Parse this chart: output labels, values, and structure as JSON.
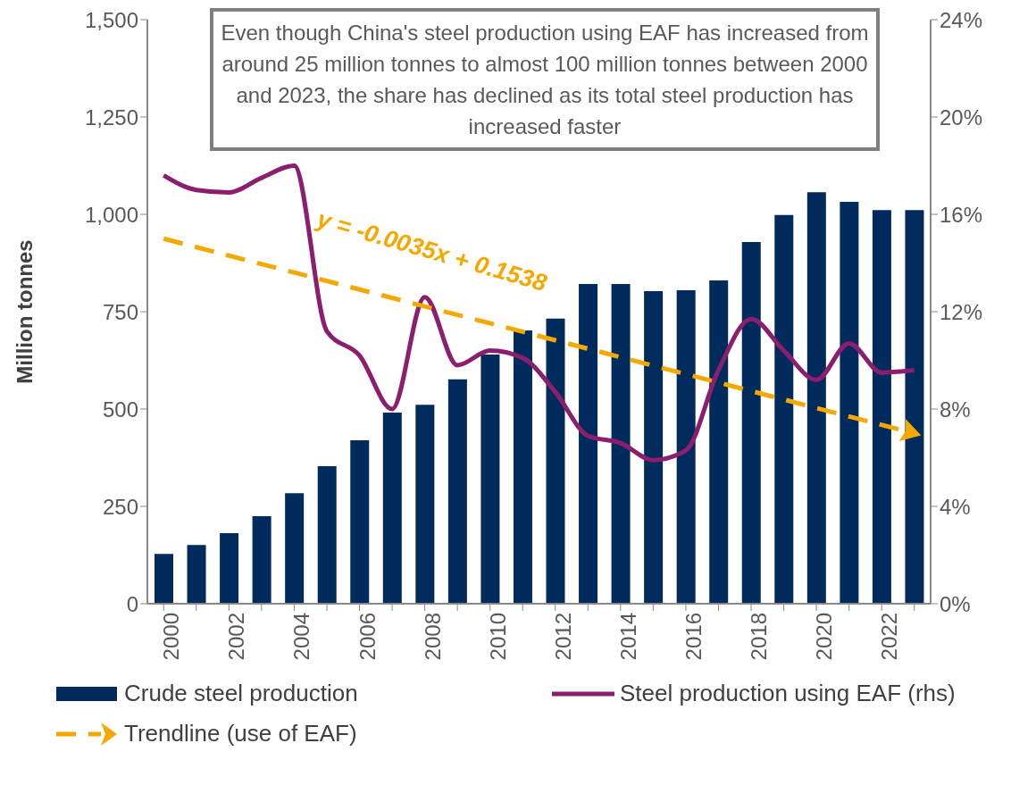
{
  "chart_data": {
    "type": "bar",
    "ylabel": "Million tonnes",
    "categories": [
      "2000",
      null,
      "2002",
      null,
      "2004",
      null,
      "2006",
      null,
      "2008",
      null,
      "2010",
      null,
      "2012",
      null,
      "2014",
      null,
      "2016",
      null,
      "2018",
      null,
      "2020",
      null,
      "2022",
      null
    ],
    "series": [
      {
        "name": "Crude steel production",
        "color": "#002b5c",
        "values": [
          128,
          151,
          181,
          225,
          284,
          353,
          420,
          491,
          511,
          576,
          640,
          702,
          732,
          821,
          821,
          803,
          805,
          830,
          929,
          998,
          1057,
          1032,
          1011,
          1011
        ]
      },
      {
        "name": "Steel production using EAF (rhs)",
        "type": "line",
        "axis": "y2",
        "color": "#8b1e6e",
        "values": [
          17.6,
          17.0,
          16.9,
          17.5,
          18.0,
          11.2,
          10.2,
          8.0,
          12.6,
          9.8,
          10.4,
          10.1,
          8.7,
          6.9,
          6.6,
          5.9,
          6.3,
          9.6,
          11.7,
          10.4,
          9.2,
          10.7,
          9.5,
          9.6
        ]
      },
      {
        "name": "Trendline (use of EAF)",
        "type": "line",
        "axis": "y2",
        "color": "#f5a800",
        "line_style": "dashed",
        "values": [
          15.0,
          null,
          null,
          null,
          null,
          null,
          null,
          null,
          null,
          null,
          null,
          null,
          null,
          null,
          null,
          null,
          null,
          null,
          null,
          null,
          null,
          null,
          null,
          7.0
        ]
      }
    ],
    "ylim": [
      0,
      1500
    ],
    "yticks": [
      0,
      250,
      500,
      750,
      {
        "value": 1000,
        "label": "1,000"
      },
      {
        "value": 1250,
        "label": "1,250"
      },
      {
        "value": 1500,
        "label": "1,500"
      }
    ],
    "y2lim": [
      0,
      24
    ],
    "y2ticks": [
      {
        "value": 0,
        "label": "0%"
      },
      {
        "value": 4,
        "label": "4%"
      },
      {
        "value": 8,
        "label": "8%"
      },
      {
        "value": 12,
        "label": "12%"
      },
      {
        "value": 16,
        "label": "16%"
      },
      {
        "value": 20,
        "label": "20%"
      },
      {
        "value": 24,
        "label": "24%"
      }
    ],
    "legend": "bottom",
    "annotations": [
      "Even though China's steel production using EAF has increased from around 25 million tonnes to almost 100 million tonnes between 2000 and 2023, the share has declined as its total steel production has increased faster",
      "y = -0.0035x + 0.1538"
    ]
  }
}
